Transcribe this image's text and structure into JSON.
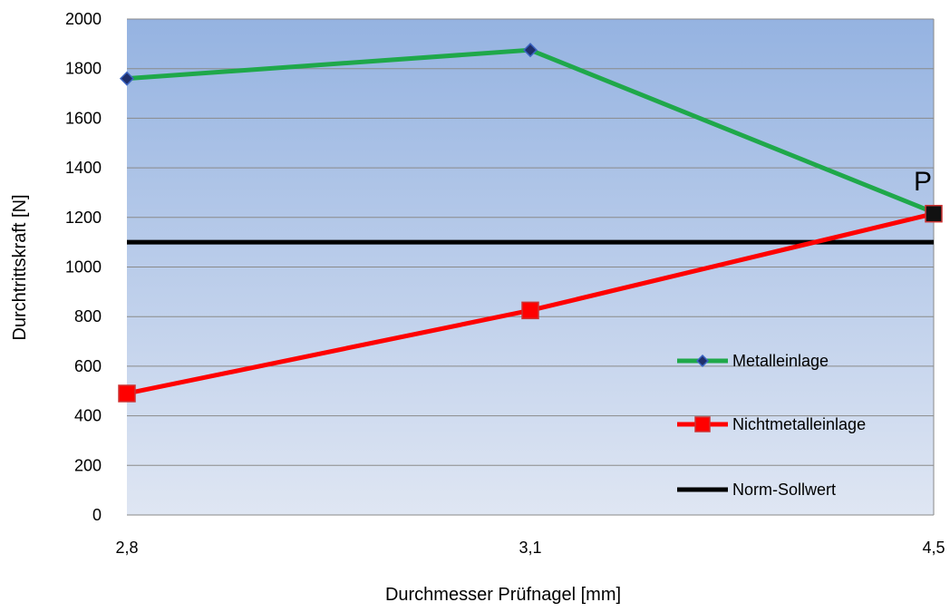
{
  "chart_data": {
    "type": "line",
    "categories": [
      "2,8",
      "3,1",
      "4,5"
    ],
    "series": [
      {
        "name": "Metalleinlage",
        "values": [
          1760,
          1875,
          1220
        ],
        "color": "#1fa84a",
        "marker": "diamond",
        "marker_color": "#1f2f6b"
      },
      {
        "name": "Nichtmetalleinlage",
        "values": [
          490,
          825,
          1215
        ],
        "color": "#ff0000",
        "marker": "square",
        "marker_color": "#ff0000"
      },
      {
        "name": "Norm-Sollwert",
        "values": [
          1100,
          1100,
          1100
        ],
        "color": "#000000",
        "marker": "none",
        "marker_color": "#000000"
      }
    ],
    "xlabel": "Durchmesser Prüfnagel [mm]",
    "ylabel": "Durchtrittskraft [N]",
    "ylim": [
      0,
      2000
    ],
    "yticks": [
      "0",
      "200",
      "400",
      "600",
      "800",
      "1000",
      "1200",
      "1400",
      "1600",
      "1800",
      "2000"
    ],
    "grid": true,
    "legend_position": "right",
    "annotation": "P",
    "background_gradient": [
      "#95b3e1",
      "#dfe6f3"
    ]
  }
}
